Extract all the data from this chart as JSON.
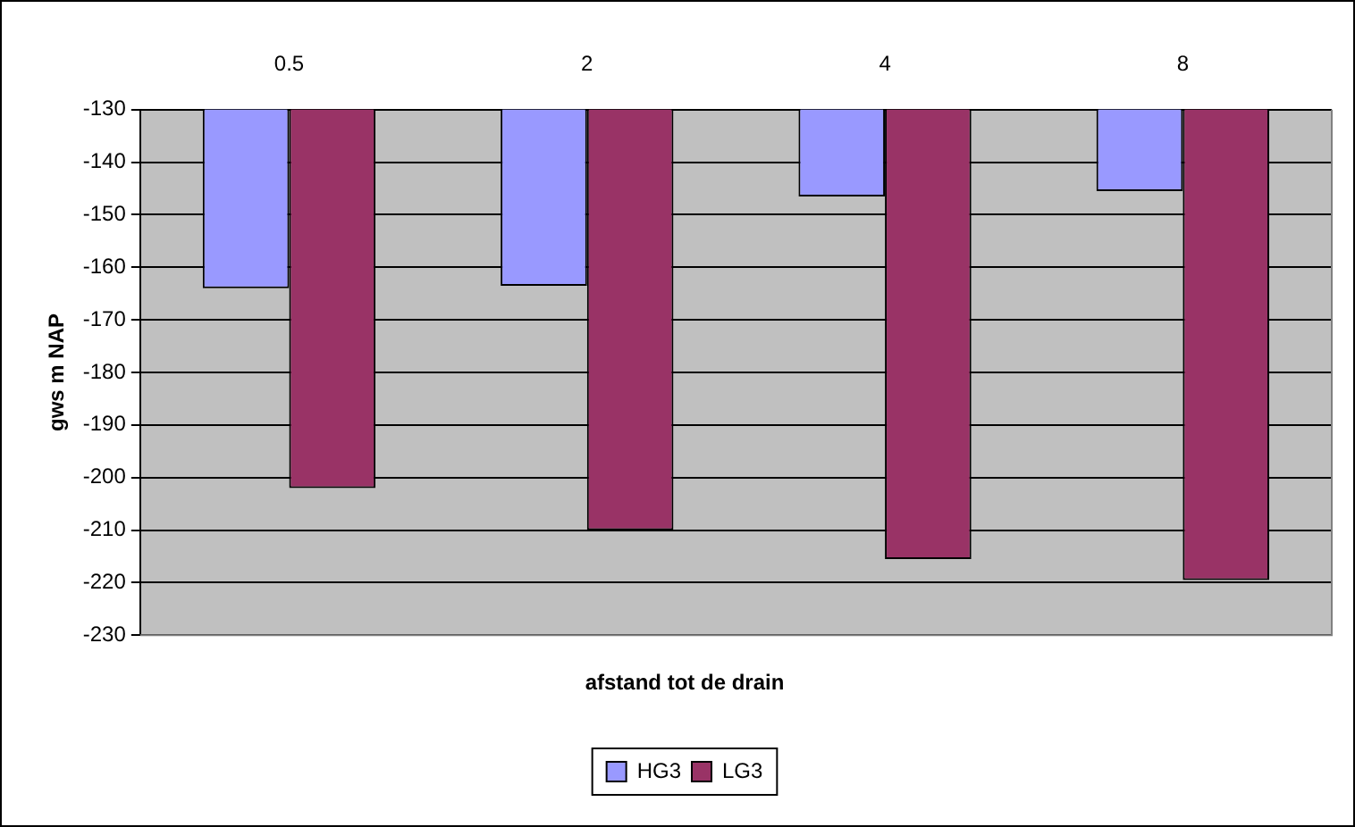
{
  "chart_data": {
    "type": "bar",
    "xlabel": "afstand tot de drain",
    "ylabel": "gws m NAP",
    "categories": [
      "0.5",
      "2",
      "4",
      "8"
    ],
    "series": [
      {
        "name": "HG3",
        "color": "#9999ff",
        "values": [
          -164,
          -163.5,
          -146.5,
          -145.5
        ]
      },
      {
        "name": "LG3",
        "color": "#993366",
        "values": [
          -202,
          -210,
          -215.5,
          -219.5
        ]
      }
    ],
    "ylim": [
      -230,
      -130
    ],
    "yticks": [
      -230,
      -220,
      -210,
      -200,
      -190,
      -180,
      -170,
      -160,
      -150,
      -140,
      -130
    ],
    "grid": "y",
    "legend": "bottom"
  }
}
